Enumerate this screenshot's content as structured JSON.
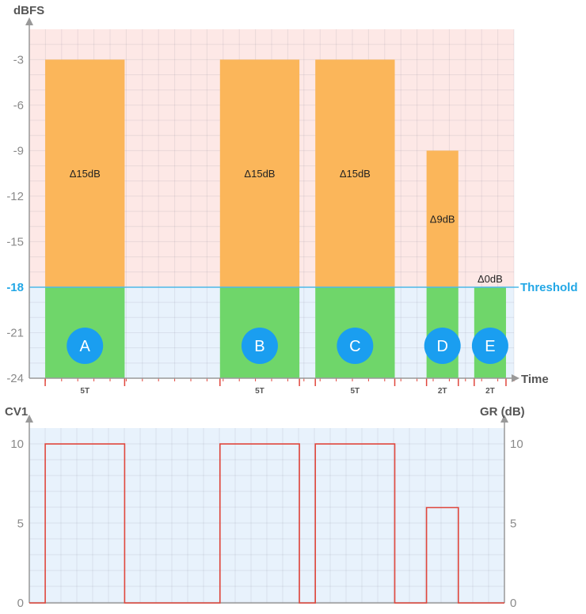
{
  "chart_data": [
    {
      "type": "bar",
      "ylabel": "dBFS",
      "xlabel": "Time",
      "ylim": [
        -24,
        -1
      ],
      "yticks": [
        -3,
        -6,
        -9,
        -12,
        -15,
        -18,
        -21,
        -24
      ],
      "threshold": -18,
      "threshold_label": "Threshold",
      "colors": {
        "above": "#fbb65a",
        "below": "#6fd66a",
        "badge": "#1a9ef0",
        "threshold": "#4db8e8"
      },
      "bars": [
        {
          "label": "A",
          "start": 0.5,
          "end": 3.0,
          "level": -3,
          "delta_label": "Δ15dB",
          "duration_label": "5T"
        },
        {
          "label": "B",
          "start": 6.0,
          "end": 8.5,
          "level": -3,
          "delta_label": "Δ15dB",
          "duration_label": "5T"
        },
        {
          "label": "C",
          "start": 9.0,
          "end": 11.5,
          "level": -3,
          "delta_label": "Δ15dB",
          "duration_label": "5T"
        },
        {
          "label": "D",
          "start": 12.5,
          "end": 13.5,
          "level": -9,
          "delta_label": "Δ9dB",
          "duration_label": "2T"
        },
        {
          "label": "E",
          "start": 14.0,
          "end": 15.0,
          "level": -18,
          "delta_label": "Δ0dB",
          "duration_label": "2T"
        }
      ],
      "xlim": [
        0,
        15.25
      ]
    },
    {
      "type": "line",
      "ylabel_left": "CV1",
      "ylabel_right": "GR (dB)",
      "ylim": [
        0,
        11
      ],
      "yticks": [
        0,
        5,
        10
      ],
      "xlim": [
        0,
        15.25
      ],
      "color": "#e0473d",
      "x": [
        0,
        0.5,
        0.5,
        3.0,
        3.0,
        6.0,
        6.0,
        8.5,
        8.5,
        9.0,
        9.0,
        11.5,
        11.5,
        12.5,
        12.5,
        13.5,
        13.5,
        15.25
      ],
      "values": [
        0,
        0,
        10,
        10,
        0,
        0,
        10,
        10,
        0,
        0,
        10,
        10,
        0,
        0,
        6,
        6,
        0,
        0
      ]
    }
  ]
}
